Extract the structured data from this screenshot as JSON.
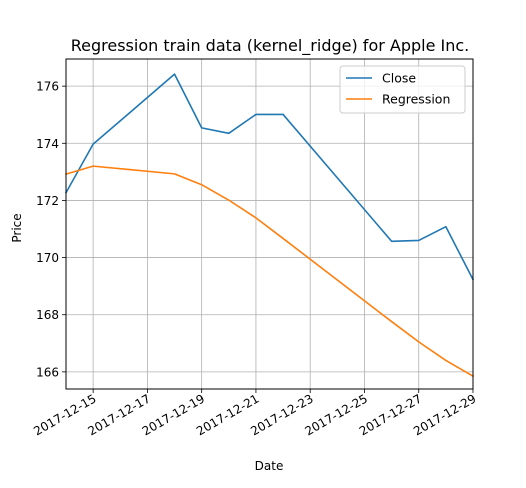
{
  "chart_data": {
    "type": "line",
    "title": "Regression train data (kernel_ridge) for Apple Inc.",
    "xlabel": "Date",
    "ylabel": "Price",
    "grid": true,
    "legend_position": "top-right",
    "xlim": [
      "2017-12-14",
      "2017-12-29"
    ],
    "ylim": [
      165.4,
      176.95
    ],
    "x_ticks": [
      "2017-12-15",
      "2017-12-17",
      "2017-12-19",
      "2017-12-21",
      "2017-12-23",
      "2017-12-25",
      "2017-12-27",
      "2017-12-29"
    ],
    "y_ticks": [
      "166",
      "168",
      "170",
      "172",
      "174",
      "176"
    ],
    "series": [
      {
        "name": "Close",
        "color": "#1f77b4",
        "x": [
          "2017-12-14",
          "2017-12-15",
          "2017-12-18",
          "2017-12-19",
          "2017-12-20",
          "2017-12-21",
          "2017-12-22",
          "2017-12-26",
          "2017-12-27",
          "2017-12-28",
          "2017-12-29"
        ],
        "y": [
          172.27,
          173.97,
          176.42,
          174.54,
          174.35,
          175.01,
          175.01,
          170.57,
          170.6,
          171.08,
          169.23
        ]
      },
      {
        "name": "Regression",
        "color": "#ff7f0e",
        "x": [
          "2017-12-14",
          "2017-12-15",
          "2017-12-18",
          "2017-12-19",
          "2017-12-20",
          "2017-12-21",
          "2017-12-22",
          "2017-12-26",
          "2017-12-27",
          "2017-12-28",
          "2017-12-29"
        ],
        "y": [
          172.92,
          173.2,
          172.93,
          172.55,
          172.01,
          171.39,
          170.67,
          167.76,
          167.05,
          166.4,
          165.85
        ]
      }
    ]
  }
}
